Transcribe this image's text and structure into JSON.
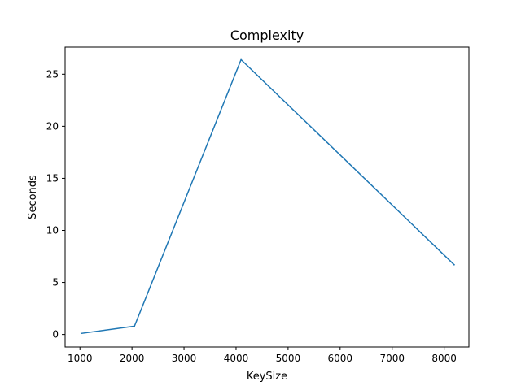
{
  "chart_data": {
    "type": "line",
    "title": "Complexity",
    "xlabel": "KeySize",
    "ylabel": "Seconds",
    "xlim": [
      715,
      8475
    ],
    "ylim": [
      -1.2,
      27.6
    ],
    "xticks": [
      1000,
      2000,
      3000,
      4000,
      5000,
      6000,
      7000,
      8000
    ],
    "yticks": [
      0,
      5,
      10,
      15,
      20,
      25
    ],
    "grid": false,
    "legend": "none",
    "series": [
      {
        "color": "#1f77b4",
        "x": [
          1024,
          2048,
          4096,
          8192
        ],
        "y": [
          0.1,
          0.8,
          26.4,
          6.7
        ]
      }
    ]
  }
}
